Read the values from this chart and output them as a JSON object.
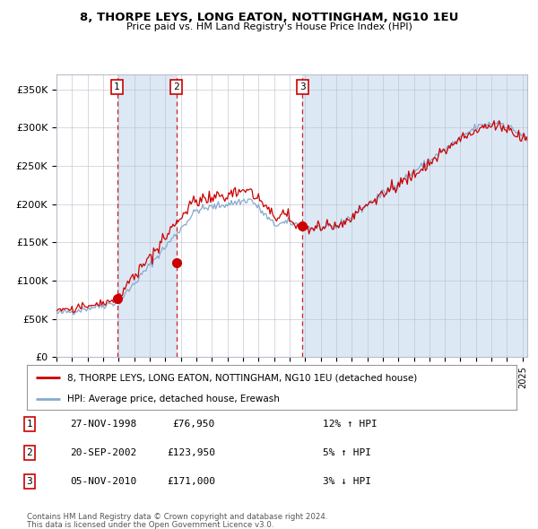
{
  "title": "8, THORPE LEYS, LONG EATON, NOTTINGHAM, NG10 1EU",
  "subtitle": "Price paid vs. HM Land Registry's House Price Index (HPI)",
  "legend_line1": "8, THORPE LEYS, LONG EATON, NOTTINGHAM, NG10 1EU (detached house)",
  "legend_line2": "HPI: Average price, detached house, Erewash",
  "sale1_date": "27-NOV-1998",
  "sale1_price": 76950,
  "sale1_pct": "12% ↑ HPI",
  "sale2_date": "20-SEP-2002",
  "sale2_price": 123950,
  "sale2_pct": "5% ↑ HPI",
  "sale3_date": "05-NOV-2010",
  "sale3_price": 171000,
  "sale3_pct": "3% ↓ HPI",
  "footnote1": "Contains HM Land Registry data © Crown copyright and database right 2024.",
  "footnote2": "This data is licensed under the Open Government Licence v3.0.",
  "red_line_color": "#cc0000",
  "blue_line_color": "#88aacc",
  "plot_bg": "#ffffff",
  "shade_color": "#dce9f5",
  "grid_color": "#bbbbcc",
  "ylim": [
    0,
    370000
  ],
  "yticks": [
    0,
    50000,
    100000,
    150000,
    200000,
    250000,
    300000,
    350000
  ],
  "sale1_x": 1998.9,
  "sale2_x": 2002.72,
  "sale3_x": 2010.84,
  "marker_color": "#cc0000",
  "dashed_line_color": "#cc0000",
  "xmin": 1995.0,
  "xmax": 2025.3
}
